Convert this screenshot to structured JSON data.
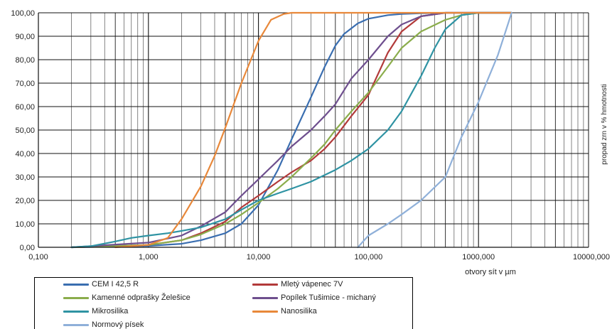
{
  "chart_data": {
    "type": "line",
    "xscale": "log",
    "xlim": [
      0.1,
      10000
    ],
    "ylim": [
      0,
      100
    ],
    "x_ticks": [
      "0,100",
      "1,000",
      "10,000",
      "100,000",
      "1000,000",
      "10000,000"
    ],
    "y_ticks": [
      "0,00",
      "10,00",
      "20,00",
      "30,00",
      "40,00",
      "50,00",
      "60,00",
      "70,00",
      "80,00",
      "90,00",
      "100,00"
    ],
    "xlabel": "otvory  sít v µm",
    "ylabel": "propad zrn v % hmotnosti",
    "grid": true,
    "legend_position": "bottom",
    "series": [
      {
        "name": "CEM I 42,5 R",
        "color": "#3a6eb0",
        "x": [
          0.2,
          1,
          2,
          3,
          5,
          7,
          10,
          15,
          20,
          30,
          40,
          50,
          60,
          80,
          100,
          150,
          200,
          300,
          500,
          1000,
          2000
        ],
        "y": [
          0,
          0.6,
          1.5,
          3,
          6,
          10,
          18,
          33,
          46,
          64,
          77,
          86,
          91,
          95.5,
          97.5,
          99,
          99.5,
          99.8,
          100,
          100,
          100
        ]
      },
      {
        "name": "Mletý vápenec 7V",
        "color": "#b23a3a",
        "x": [
          0.2,
          1,
          2,
          3,
          5,
          7,
          10,
          15,
          20,
          30,
          40,
          50,
          70,
          100,
          150,
          200,
          300,
          500,
          1000,
          2000
        ],
        "y": [
          0,
          1,
          3,
          6,
          11,
          17,
          22,
          28,
          32,
          37,
          42,
          47,
          56,
          65,
          83,
          92,
          98.5,
          100,
          100,
          100
        ]
      },
      {
        "name": "Kamenné odprašky Želešice",
        "color": "#8bad4c",
        "x": [
          0.2,
          1,
          2,
          3,
          5,
          7,
          10,
          15,
          20,
          30,
          40,
          50,
          70,
          100,
          150,
          200,
          300,
          500,
          700,
          1000,
          2000
        ],
        "y": [
          0,
          1,
          3,
          5.5,
          10,
          14,
          19,
          25,
          30,
          38,
          44,
          50,
          58,
          66,
          77,
          85,
          92,
          97,
          99,
          100,
          100
        ]
      },
      {
        "name": "Popílek Tušimice - michaný",
        "color": "#6e4f8e",
        "x": [
          0.2,
          1,
          2,
          3,
          5,
          7,
          10,
          15,
          20,
          30,
          40,
          50,
          70,
          100,
          150,
          200,
          300,
          500,
          1000,
          2000
        ],
        "y": [
          0,
          2,
          5,
          9,
          15,
          22,
          29,
          37,
          43,
          50,
          56,
          61,
          72,
          80,
          90,
          95,
          98.5,
          100,
          100,
          100
        ]
      },
      {
        "name": "Mikrosilika",
        "color": "#2f93a3",
        "x": [
          0.2,
          0.3,
          0.5,
          0.7,
          1,
          1.5,
          2,
          3,
          5,
          7,
          10,
          15,
          20,
          30,
          50,
          70,
          100,
          150,
          200,
          300,
          400,
          500,
          700,
          1000,
          2000
        ],
        "y": [
          0,
          0.5,
          2.5,
          4,
          5,
          6,
          7,
          8.5,
          12,
          16,
          20,
          23,
          25,
          28,
          33,
          37,
          42,
          50,
          58,
          73,
          85,
          93,
          99,
          100,
          100
        ]
      },
      {
        "name": "Nanosilika",
        "color": "#e8883a",
        "x": [
          0.5,
          1,
          1.5,
          2,
          3,
          4,
          5,
          7,
          10,
          13,
          17,
          20,
          50,
          2000
        ],
        "y": [
          0,
          1,
          4,
          12,
          26,
          39,
          51,
          70,
          88,
          97,
          99.5,
          100,
          100,
          100
        ]
      },
      {
        "name": "Normový písek",
        "color": "#8fb0d9",
        "x": [
          80,
          100,
          150,
          200,
          300,
          500,
          700,
          1000,
          1500,
          2000
        ],
        "y": [
          0,
          5,
          10,
          14,
          20,
          30,
          47,
          62,
          82,
          100
        ]
      }
    ]
  }
}
